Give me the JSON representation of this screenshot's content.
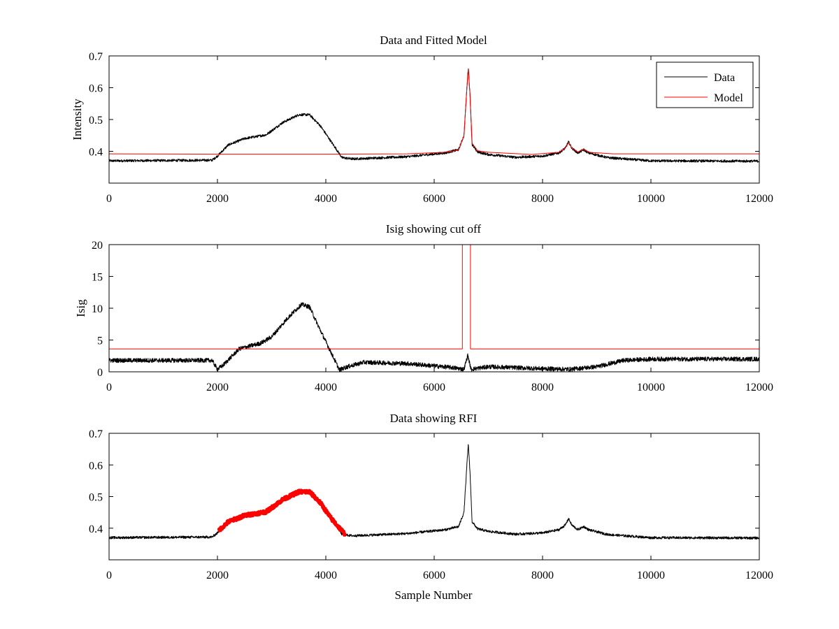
{
  "colors": {
    "data": "#000000",
    "model": "#ff0000",
    "rfi": "#ff0000",
    "axes": "#000000",
    "background": "#ffffff"
  },
  "chart_data": [
    {
      "type": "line",
      "title": "Data and Fitted Model",
      "xlabel": "",
      "ylabel": "Intensity",
      "xlim": [
        0,
        12000
      ],
      "ylim": [
        0.3,
        0.7
      ],
      "xticks": [
        "0",
        "2000",
        "4000",
        "6000",
        "8000",
        "10000",
        "12000"
      ],
      "yticks": [
        "0.4",
        "0.5",
        "0.6",
        "0.7"
      ],
      "legend_placement": "top-right",
      "series": [
        {
          "name": "Data",
          "color": "#000000",
          "noise": 0.004,
          "points": [
            [
              0,
              0.37
            ],
            [
              1900,
              0.372
            ],
            [
              2000,
              0.385
            ],
            [
              2200,
              0.42
            ],
            [
              2500,
              0.44
            ],
            [
              2900,
              0.452
            ],
            [
              3200,
              0.49
            ],
            [
              3500,
              0.515
            ],
            [
              3700,
              0.515
            ],
            [
              3900,
              0.48
            ],
            [
              4100,
              0.43
            ],
            [
              4300,
              0.38
            ],
            [
              4500,
              0.376
            ],
            [
              5500,
              0.383
            ],
            [
              6200,
              0.395
            ],
            [
              6450,
              0.405
            ],
            [
              6550,
              0.45
            ],
            [
              6600,
              0.59
            ],
            [
              6630,
              0.667
            ],
            [
              6660,
              0.58
            ],
            [
              6700,
              0.42
            ],
            [
              6800,
              0.398
            ],
            [
              7000,
              0.39
            ],
            [
              7500,
              0.381
            ],
            [
              8000,
              0.385
            ],
            [
              8300,
              0.395
            ],
            [
              8420,
              0.41
            ],
            [
              8480,
              0.43
            ],
            [
              8540,
              0.41
            ],
            [
              8650,
              0.395
            ],
            [
              8760,
              0.405
            ],
            [
              8850,
              0.395
            ],
            [
              9200,
              0.38
            ],
            [
              10000,
              0.37
            ],
            [
              12000,
              0.369
            ]
          ]
        },
        {
          "name": "Model",
          "color": "#ff0000",
          "noise": 0,
          "points": [
            [
              0,
              0.392
            ],
            [
              2000,
              0.391
            ],
            [
              4000,
              0.391
            ],
            [
              5500,
              0.392
            ],
            [
              6200,
              0.397
            ],
            [
              6450,
              0.404
            ],
            [
              6550,
              0.45
            ],
            [
              6600,
              0.59
            ],
            [
              6630,
              0.66
            ],
            [
              6660,
              0.58
            ],
            [
              6700,
              0.425
            ],
            [
              6800,
              0.402
            ],
            [
              7000,
              0.397
            ],
            [
              7800,
              0.39
            ],
            [
              8300,
              0.397
            ],
            [
              8420,
              0.41
            ],
            [
              8480,
              0.427
            ],
            [
              8540,
              0.41
            ],
            [
              8650,
              0.398
            ],
            [
              8760,
              0.407
            ],
            [
              8850,
              0.397
            ],
            [
              9300,
              0.392
            ],
            [
              12000,
              0.392
            ]
          ]
        }
      ]
    },
    {
      "type": "line",
      "title": "Isig showing cut off",
      "xlabel": "",
      "ylabel": "Isig",
      "xlim": [
        0,
        12000
      ],
      "ylim": [
        0,
        20
      ],
      "xticks": [
        "0",
        "2000",
        "4000",
        "6000",
        "8000",
        "10000",
        "12000"
      ],
      "yticks": [
        "0",
        "5",
        "10",
        "15",
        "20"
      ],
      "series": [
        {
          "color": "#000000",
          "noise": 0.35,
          "points": [
            [
              0,
              1.8
            ],
            [
              1900,
              1.8
            ],
            [
              2000,
              0.4
            ],
            [
              2100,
              1.0
            ],
            [
              2400,
              3.6
            ],
            [
              2800,
              4.5
            ],
            [
              3000,
              5.5
            ],
            [
              3300,
              8.5
            ],
            [
              3550,
              10.6
            ],
            [
              3700,
              10.2
            ],
            [
              3900,
              6.5
            ],
            [
              4100,
              3.0
            ],
            [
              4250,
              0.3
            ],
            [
              4400,
              0.8
            ],
            [
              4700,
              1.5
            ],
            [
              5500,
              1.3
            ],
            [
              6300,
              0.7
            ],
            [
              6550,
              0.4
            ],
            [
              6620,
              2.6
            ],
            [
              6680,
              0.4
            ],
            [
              7000,
              0.8
            ],
            [
              8000,
              0.5
            ],
            [
              8500,
              0.4
            ],
            [
              9000,
              0.8
            ],
            [
              9500,
              1.8
            ],
            [
              10000,
              2.0
            ],
            [
              12000,
              2.0
            ]
          ]
        },
        {
          "color": "#ff0000",
          "noise": 0,
          "points": [
            [
              0,
              3.6
            ],
            [
              6520,
              3.6
            ],
            [
              6520,
              20
            ],
            [
              6670,
              20
            ],
            [
              6670,
              3.6
            ],
            [
              12000,
              3.6
            ]
          ]
        }
      ]
    },
    {
      "type": "line",
      "title": "Data showing RFI",
      "xlabel": "Sample Number",
      "ylabel": "",
      "xlim": [
        0,
        12000
      ],
      "ylim": [
        0.3,
        0.7
      ],
      "xticks": [
        "0",
        "2000",
        "4000",
        "6000",
        "8000",
        "10000",
        "12000"
      ],
      "yticks": [
        "0.4",
        "0.5",
        "0.6",
        "0.7"
      ],
      "series": [
        {
          "color": "#000000",
          "noise": 0.004,
          "points": [
            [
              0,
              0.37
            ],
            [
              1900,
              0.372
            ],
            [
              2000,
              0.385
            ],
            [
              2200,
              0.42
            ],
            [
              2500,
              0.44
            ],
            [
              2900,
              0.452
            ],
            [
              3200,
              0.49
            ],
            [
              3500,
              0.515
            ],
            [
              3700,
              0.515
            ],
            [
              3900,
              0.48
            ],
            [
              4100,
              0.43
            ],
            [
              4300,
              0.38
            ],
            [
              4500,
              0.376
            ],
            [
              5500,
              0.383
            ],
            [
              6200,
              0.395
            ],
            [
              6450,
              0.405
            ],
            [
              6550,
              0.45
            ],
            [
              6600,
              0.59
            ],
            [
              6630,
              0.667
            ],
            [
              6660,
              0.58
            ],
            [
              6700,
              0.42
            ],
            [
              6800,
              0.398
            ],
            [
              7000,
              0.39
            ],
            [
              7500,
              0.381
            ],
            [
              8000,
              0.385
            ],
            [
              8300,
              0.395
            ],
            [
              8420,
              0.41
            ],
            [
              8480,
              0.43
            ],
            [
              8540,
              0.41
            ],
            [
              8650,
              0.395
            ],
            [
              8760,
              0.405
            ],
            [
              8850,
              0.395
            ],
            [
              9200,
              0.38
            ],
            [
              10000,
              0.37
            ],
            [
              12000,
              0.369
            ]
          ]
        },
        {
          "color": "#ff0000",
          "noise": 0.005,
          "thick": true,
          "points": [
            [
              2020,
              0.392
            ],
            [
              2200,
              0.42
            ],
            [
              2500,
              0.44
            ],
            [
              2900,
              0.452
            ],
            [
              3200,
              0.49
            ],
            [
              3500,
              0.515
            ],
            [
              3700,
              0.515
            ],
            [
              3900,
              0.48
            ],
            [
              4100,
              0.43
            ],
            [
              4360,
              0.38
            ]
          ]
        }
      ]
    }
  ]
}
